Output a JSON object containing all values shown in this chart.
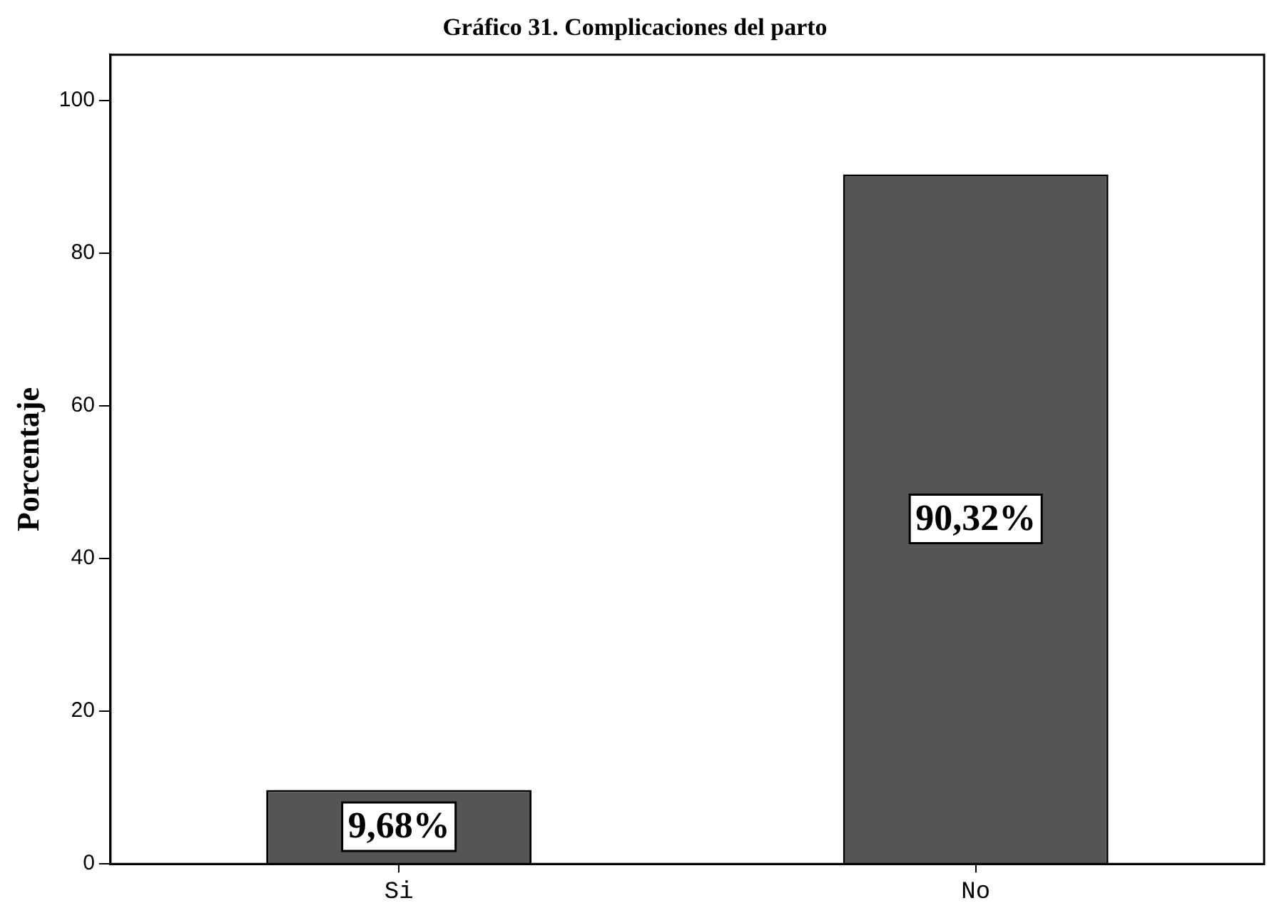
{
  "chart_data": {
    "type": "bar",
    "title": "Gráfico 31. Complicaciones del parto",
    "ylabel": "Porcentaje",
    "categories": [
      "Si",
      "No"
    ],
    "values": [
      9.68,
      90.32
    ],
    "value_labels": [
      "9,68%",
      "90,32%"
    ],
    "color": "#555555",
    "ylim": [
      0,
      106
    ],
    "yticks": [
      0,
      20,
      40,
      60,
      80,
      100
    ],
    "grid": false,
    "legend": false
  }
}
